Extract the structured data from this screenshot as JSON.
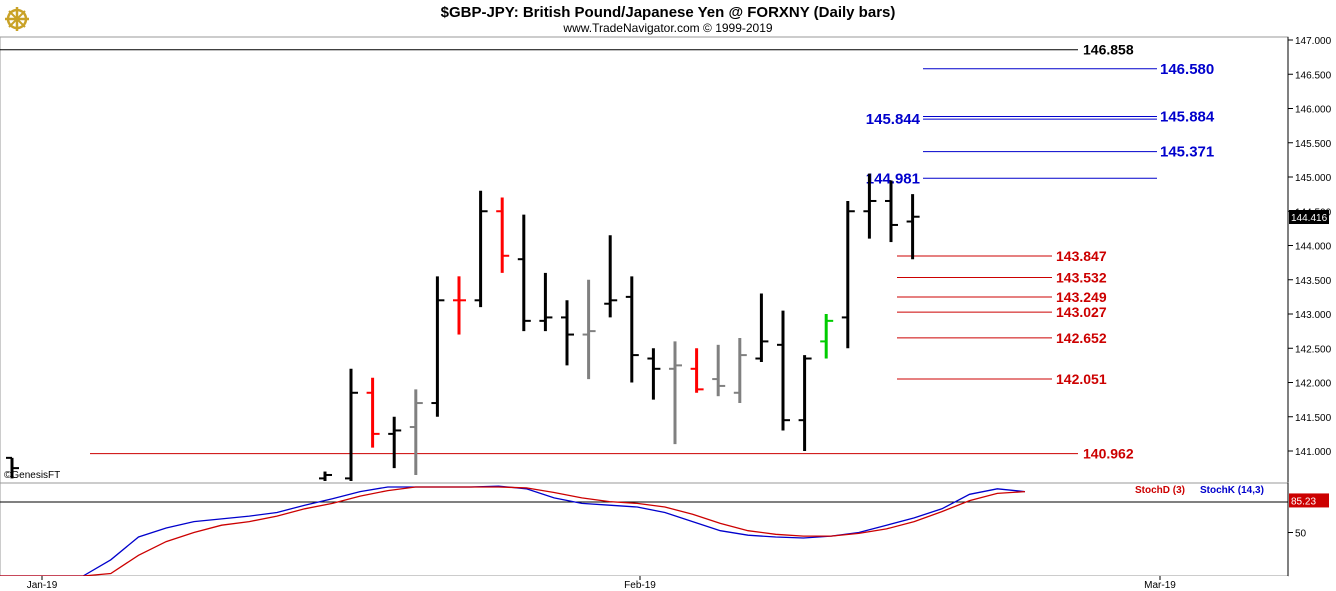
{
  "header": {
    "title": "$GBP-JPY:  British Pound/Japanese Yen @ FORXNY  (Daily bars)",
    "subtitle": "www.TradeNavigator.com © 1999-2019"
  },
  "watermark": "©GenesisFT",
  "logo_icon": "ship-wheel-logo-icon",
  "colors": {
    "up_bar": "#000000",
    "down_bar": "#ff0000",
    "neutral_bar": "#808080",
    "green_bar": "#00cc00",
    "level_blue": "#0000cc",
    "level_red": "#cc0000",
    "level_black": "#000000",
    "stoch_k": "#0000cc",
    "stoch_d": "#cc0000",
    "last_price_badge": "#000000",
    "stoch_badge": "#cc0000"
  },
  "chart_data": [
    {
      "type": "ohlc",
      "title": "$GBP-JPY:  British Pound/Japanese Yen @ FORXNY  (Daily bars)",
      "ylim": [
        140.6,
        147.1
      ],
      "y_ticks": [
        "141.000",
        "141.500",
        "142.000",
        "142.500",
        "143.000",
        "143.500",
        "144.000",
        "144.500",
        "145.000",
        "145.500",
        "146.000",
        "146.500",
        "147.000"
      ],
      "x_ticks": [
        "Jan-19",
        "Feb-19",
        "Mar-19"
      ],
      "last_price_label": "144.416",
      "bars": [
        {
          "o": 140.9,
          "h": 140.9,
          "l": 140.6,
          "c": 140.75,
          "color": "up"
        },
        {
          "o": 140.6,
          "h": 140.7,
          "l": 140.55,
          "c": 140.65,
          "color": "up"
        },
        {
          "o": 140.6,
          "h": 142.2,
          "l": 140.5,
          "c": 141.85,
          "color": "up"
        },
        {
          "o": 141.85,
          "h": 142.07,
          "l": 141.05,
          "c": 141.25,
          "color": "down"
        },
        {
          "o": 141.25,
          "h": 141.5,
          "l": 140.75,
          "c": 141.3,
          "color": "up"
        },
        {
          "o": 141.35,
          "h": 141.9,
          "l": 140.65,
          "c": 141.7,
          "color": "neutral"
        },
        {
          "o": 141.7,
          "h": 143.55,
          "l": 141.5,
          "c": 143.2,
          "color": "up"
        },
        {
          "o": 143.2,
          "h": 143.55,
          "l": 142.7,
          "c": 143.2,
          "color": "down"
        },
        {
          "o": 143.2,
          "h": 144.8,
          "l": 143.1,
          "c": 144.5,
          "color": "up"
        },
        {
          "o": 144.5,
          "h": 144.7,
          "l": 143.6,
          "c": 143.85,
          "color": "down"
        },
        {
          "o": 143.8,
          "h": 144.45,
          "l": 142.75,
          "c": 142.9,
          "color": "up"
        },
        {
          "o": 142.9,
          "h": 143.6,
          "l": 142.75,
          "c": 142.95,
          "color": "up"
        },
        {
          "o": 142.95,
          "h": 143.2,
          "l": 142.25,
          "c": 142.7,
          "color": "up"
        },
        {
          "o": 142.7,
          "h": 143.5,
          "l": 142.05,
          "c": 142.75,
          "color": "neutral"
        },
        {
          "o": 143.15,
          "h": 144.15,
          "l": 142.95,
          "c": 143.2,
          "color": "up"
        },
        {
          "o": 143.25,
          "h": 143.55,
          "l": 142.0,
          "c": 142.4,
          "color": "up"
        },
        {
          "o": 142.35,
          "h": 142.5,
          "l": 141.75,
          "c": 142.2,
          "color": "up"
        },
        {
          "o": 142.2,
          "h": 142.6,
          "l": 141.1,
          "c": 142.25,
          "color": "neutral"
        },
        {
          "o": 142.2,
          "h": 142.5,
          "l": 141.85,
          "c": 141.9,
          "color": "down"
        },
        {
          "o": 142.05,
          "h": 142.55,
          "l": 141.8,
          "c": 141.95,
          "color": "neutral"
        },
        {
          "o": 141.85,
          "h": 142.65,
          "l": 141.7,
          "c": 142.4,
          "color": "neutral"
        },
        {
          "o": 142.35,
          "h": 143.3,
          "l": 142.3,
          "c": 142.6,
          "color": "up"
        },
        {
          "o": 142.55,
          "h": 143.05,
          "l": 141.3,
          "c": 141.45,
          "color": "up"
        },
        {
          "o": 141.45,
          "h": 142.4,
          "l": 141.0,
          "c": 142.35,
          "color": "up"
        },
        {
          "o": 142.6,
          "h": 143.0,
          "l": 142.35,
          "c": 142.9,
          "color": "green"
        },
        {
          "o": 142.95,
          "h": 144.65,
          "l": 142.5,
          "c": 144.5,
          "color": "up"
        },
        {
          "o": 144.5,
          "h": 145.05,
          "l": 144.1,
          "c": 144.65,
          "color": "up"
        },
        {
          "o": 144.65,
          "h": 144.95,
          "l": 144.05,
          "c": 144.3,
          "color": "up"
        },
        {
          "o": 144.35,
          "h": 144.75,
          "l": 143.8,
          "c": 144.42,
          "color": "up"
        }
      ],
      "levels": [
        {
          "value": 146.858,
          "label": "146.858",
          "color": "black",
          "label_side": "right"
        },
        {
          "value": 146.58,
          "label": "146.580",
          "color": "blue",
          "label_side": "right"
        },
        {
          "value": 145.884,
          "label": "145.884",
          "color": "blue",
          "label_side": "right"
        },
        {
          "value": 145.844,
          "label": "145.844",
          "color": "blue",
          "label_side": "left"
        },
        {
          "value": 145.371,
          "label": "145.371",
          "color": "blue",
          "label_side": "right"
        },
        {
          "value": 144.981,
          "label": "144.981",
          "color": "blue",
          "label_side": "left"
        },
        {
          "value": 143.847,
          "label": "143.847",
          "color": "red",
          "label_side": "right"
        },
        {
          "value": 143.532,
          "label": "143.532",
          "color": "red",
          "label_side": "right"
        },
        {
          "value": 143.249,
          "label": "143.249",
          "color": "red",
          "label_side": "right"
        },
        {
          "value": 143.027,
          "label": "143.027",
          "color": "red",
          "label_side": "right"
        },
        {
          "value": 142.652,
          "label": "142.652",
          "color": "red",
          "label_side": "right"
        },
        {
          "value": 142.051,
          "label": "142.051",
          "color": "red",
          "label_side": "right"
        },
        {
          "value": 140.962,
          "label": "140.962",
          "color": "red",
          "label_side": "right"
        }
      ]
    },
    {
      "type": "line",
      "title": "",
      "ylim": [
        0,
        100
      ],
      "y_ticks": [
        "50"
      ],
      "last_value_label": "85.23",
      "legend": [
        {
          "name": "StochD (3)",
          "color": "red"
        },
        {
          "name": "StochK (14,3)",
          "color": "blue"
        }
      ],
      "series": [
        {
          "name": "StochK (14,3)",
          "values": [
            0,
            0,
            0,
            0,
            20,
            45,
            55,
            62,
            65,
            68,
            72,
            80,
            87,
            95,
            100,
            100,
            100,
            100,
            101,
            98,
            88,
            82,
            80,
            78,
            72,
            62,
            52,
            47,
            45,
            44,
            46,
            50,
            58,
            66,
            76,
            92,
            98,
            95
          ]
        },
        {
          "name": "StochD (3)",
          "values": [
            -5,
            -5,
            -5,
            -5,
            5,
            25,
            40,
            50,
            58,
            62,
            68,
            76,
            82,
            90,
            96,
            100,
            100,
            100,
            100,
            99,
            94,
            88,
            84,
            82,
            78,
            70,
            60,
            52,
            48,
            46,
            46,
            49,
            54,
            62,
            73,
            85,
            93,
            95
          ]
        }
      ]
    }
  ]
}
